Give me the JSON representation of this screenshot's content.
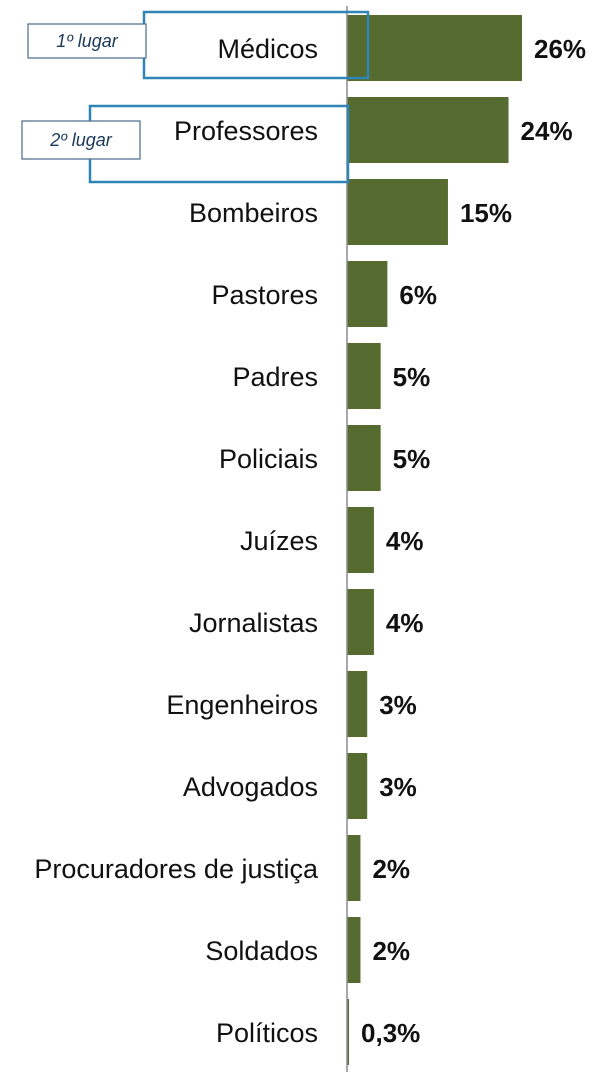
{
  "chart_data": {
    "type": "bar",
    "orientation": "horizontal",
    "categories": [
      "Médicos",
      "Professores",
      "Bombeiros",
      "Pastores",
      "Padres",
      "Policiais",
      "Juízes",
      "Jornalistas",
      "Engenheiros",
      "Advogados",
      "Procuradores de justiça",
      "Soldados",
      "Políticos"
    ],
    "values": [
      26,
      24,
      15,
      6,
      5,
      5,
      4,
      4,
      3,
      3,
      2,
      2,
      0.3
    ],
    "value_labels": [
      "26%",
      "24%",
      "15%",
      "6%",
      "5%",
      "5%",
      "4%",
      "4%",
      "3%",
      "3%",
      "2%",
      "2%",
      "0,3%"
    ],
    "title": "",
    "xlabel": "",
    "ylabel": "",
    "xlim": [
      0,
      26
    ],
    "grid": false,
    "bar_color": "#556b2f",
    "highlight_color": "#2f86b5",
    "annotations": [
      {
        "label": "1º lugar",
        "category_index": 0
      },
      {
        "label": "2º lugar",
        "category_index": 1
      }
    ]
  }
}
